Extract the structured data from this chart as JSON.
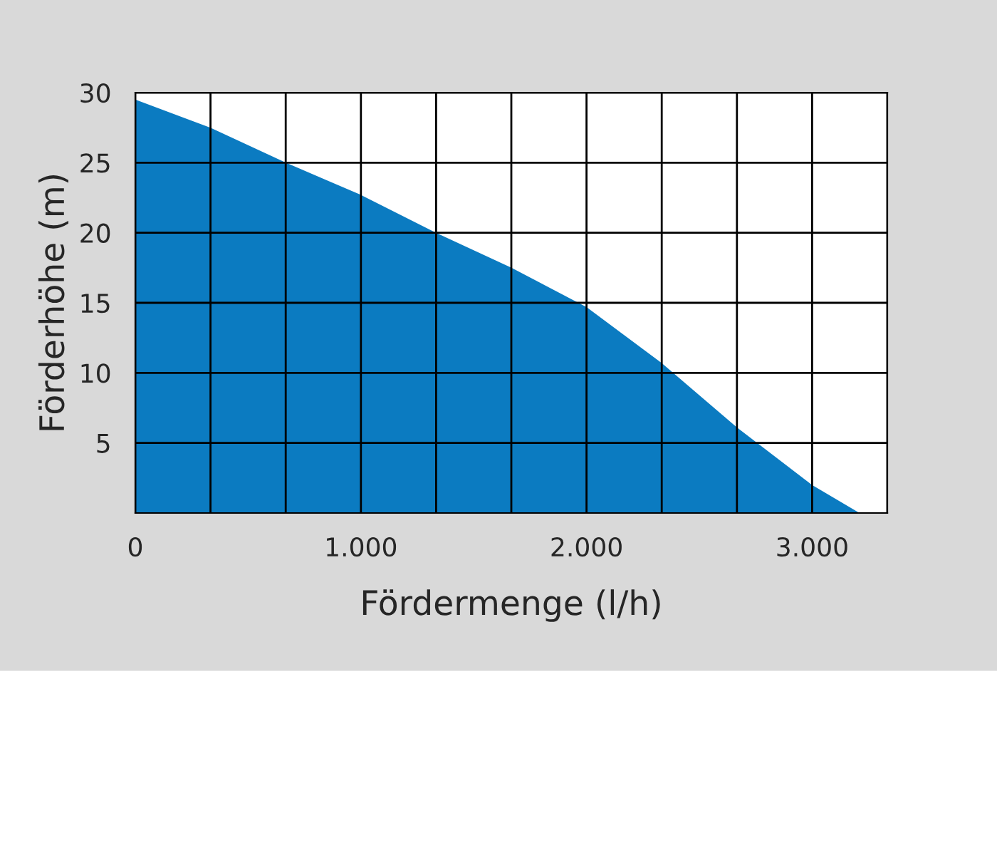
{
  "chart_data": {
    "type": "area",
    "xlabel": "Fördermenge (l/h)",
    "ylabel": "Förderhöhe (m)",
    "x": [
      0,
      333,
      667,
      1000,
      1333,
      1667,
      2000,
      2333,
      2667,
      3000,
      3210
    ],
    "series": [
      {
        "color": "#0b7bc1",
        "values": [
          29.5,
          27.5,
          25,
          22.7,
          20,
          17.5,
          14.7,
          10.7,
          6.1,
          2,
          0
        ]
      }
    ],
    "xlim": [
      0,
      3333.3
    ],
    "xticks": [
      0,
      {
        "value": 333.33,
        "label": null
      },
      {
        "value": 666.67,
        "label": null
      },
      {
        "value": 1000,
        "label": "1.000"
      },
      {
        "value": 1333.33,
        "label": null
      },
      {
        "value": 1666.67,
        "label": null
      },
      {
        "value": 2000,
        "label": "2.000"
      },
      {
        "value": 2333.33,
        "label": null
      },
      {
        "value": 2666.67,
        "label": null
      },
      {
        "value": 3000,
        "label": "3.000"
      },
      {
        "value": 3333.3,
        "label": null
      }
    ],
    "ylim": [
      0,
      30
    ],
    "yticks": [
      5,
      10,
      15,
      20,
      25,
      30
    ],
    "grid": true,
    "legend": false
  }
}
